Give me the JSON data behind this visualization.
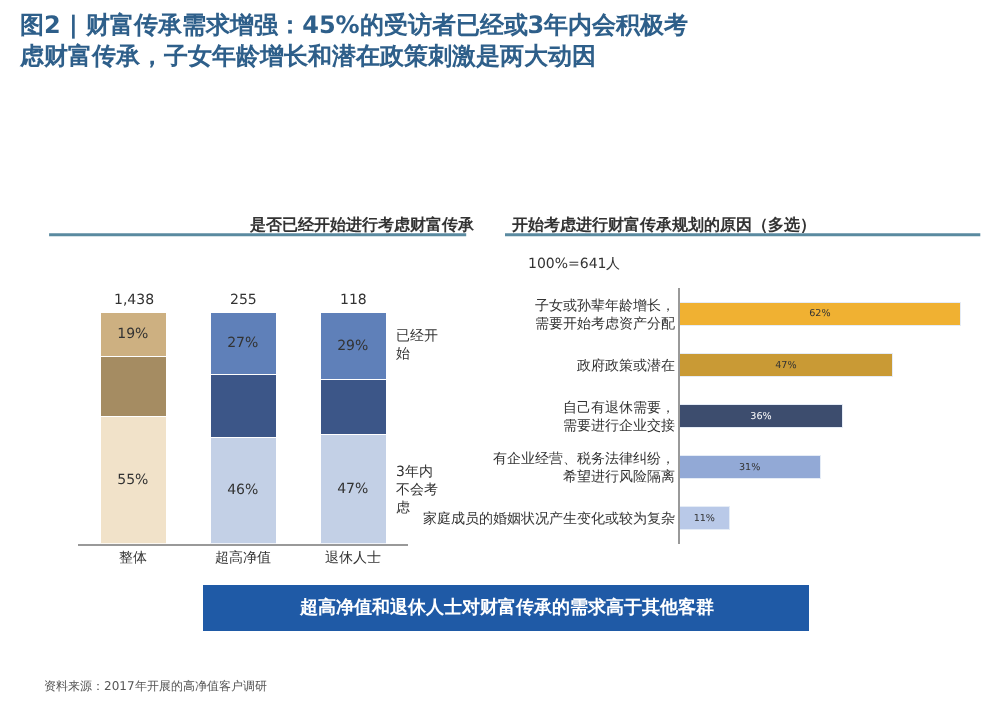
{
  "chart_data": [
    {
      "type": "bar",
      "title": "图2 | 财富传承需求增强：45%的受访者已经或3年内会积极考虑财富传承，子女年龄增长和潜在政策刺激是两大动因",
      "subtitle": "是否已经开始进行考虑财富传承",
      "categories": [
        "整体",
        "超高净值",
        "退休人士"
      ],
      "stacked": true,
      "tick_labels": "x",
      "series": [
        {
          "name": "3年内不会考虑",
          "values": [
            55,
            46,
            47
          ],
          "colors": [
            "#f1e2c9",
            "#c3d0e6",
            "#c3d0e6"
          ],
          "value_labels": [
            "55%",
            "46%",
            "47%"
          ]
        },
        {
          "values": [
            26,
            27,
            24
          ],
          "colors": [
            "#a58c62",
            "#3c5688",
            "#3c5688"
          ],
          "value_labels": [
            null,
            null,
            null
          ]
        },
        {
          "name": "已经开始",
          "values": [
            19,
            27,
            29
          ],
          "colors": [
            "#cdb081",
            "#5f80b9",
            "#5f80b9"
          ],
          "value_labels": [
            "19%",
            "27%",
            "29%"
          ]
        }
      ],
      "annotations": [
        "1,438",
        "255",
        "118"
      ]
    },
    {
      "type": "bar",
      "orientation": "horizontal",
      "title": "开始考虑进行财富传承规划的原因（多选）",
      "subtitle": "100%=641人",
      "tick_labels": "y",
      "categories": [
        "子女或孙辈年龄增长，需要开始考虑资产分配",
        "政府政策或潜在",
        "自己有退休需要，需要进行企业交接",
        "有企业经营、税务法律纠纷，希望进行风险隔离",
        "家庭成员的婚姻状况产生变化或较为复杂"
      ],
      "values": [
        62,
        47,
        36,
        31,
        11
      ],
      "colors": [
        "#f0b132",
        "#c99a35",
        "#3d4d6e",
        "#92a9d6",
        "#b9c9e8"
      ],
      "value_labels": [
        "62%",
        "47%",
        "36%",
        "31%",
        "11%"
      ],
      "annotations": [
        "超高净值和退休人士对财富传承的需求高于其他客群",
        "资料来源：2017年开展的高净值客户调研"
      ]
    }
  ]
}
